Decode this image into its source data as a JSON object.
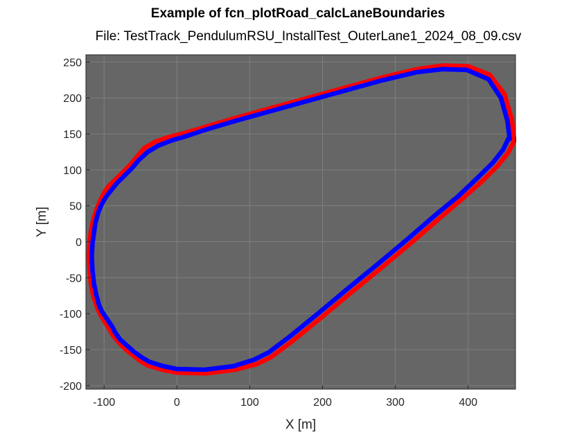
{
  "chart_data": {
    "type": "scatter",
    "title": "Example of fcn_plotRoad_calcLaneBoundaries",
    "subtitle": "File: TestTrack_PendulumRSU_InstallTest_OuterLane1_2024_08_09.csv",
    "xlabel": "X [m]",
    "ylabel": "Y [m]",
    "xlim": [
      -125,
      465
    ],
    "ylim": [
      -205,
      260
    ],
    "xticks": [
      -100,
      0,
      100,
      200,
      300,
      400
    ],
    "yticks": [
      250,
      200,
      150,
      100,
      50,
      0,
      -50,
      -100,
      -150,
      -200
    ],
    "grid": true,
    "background": "#666666",
    "series": [
      {
        "color": "#ff0000",
        "x": [
          463,
          460,
          450,
          430,
          400,
          365,
          330,
          280,
          230,
          180,
          130,
          80,
          40,
          10,
          -10,
          -30,
          -45,
          -55,
          -65,
          -75,
          -85,
          -95,
          -100,
          -105,
          -110,
          -115,
          -118,
          -120,
          -121,
          -120,
          -118,
          -115,
          -110,
          -106,
          -92,
          -88,
          -80,
          -70,
          -60,
          -50,
          -40,
          -20,
          0,
          40,
          80,
          110,
          130,
          160,
          200,
          240,
          280,
          320,
          360,
          390,
          420,
          440,
          455,
          463
        ],
        "y": [
          143,
          170,
          205,
          232,
          244,
          245,
          240,
          228,
          214,
          200,
          186,
          172,
          160,
          151,
          146,
          139,
          130,
          118,
          106,
          96,
          86,
          76,
          68,
          58,
          46,
          30,
          15,
          0,
          -20,
          -40,
          -60,
          -75,
          -90,
          -100,
          -123,
          -130,
          -140,
          -150,
          -158,
          -166,
          -172,
          -178,
          -182,
          -183,
          -178,
          -170,
          -160,
          -137,
          -104,
          -70,
          -37,
          -3,
          32,
          58,
          85,
          105,
          124,
          140
        ]
      },
      {
        "color": "#0000ff",
        "x": [
          457,
          454,
          445,
          428,
          398,
          365,
          330,
          280,
          230,
          180,
          130,
          80,
          40,
          10,
          -7,
          -25,
          -40,
          -52,
          -62,
          -72,
          -82,
          -90,
          -97,
          -103,
          -108,
          -112,
          -114,
          -116,
          -117,
          -116,
          -114,
          -111,
          -107,
          -103,
          -89,
          -85,
          -78,
          -68,
          -59,
          -48,
          -38,
          -19,
          0,
          38,
          78,
          106,
          126,
          156,
          196,
          236,
          276,
          316,
          356,
          386,
          414,
          434,
          448,
          455
        ],
        "y": [
          143,
          168,
          200,
          226,
          239,
          240,
          236,
          224,
          210,
          196,
          182,
          168,
          156,
          146,
          141,
          134,
          125,
          114,
          102,
          92,
          82,
          72,
          63,
          53,
          41,
          26,
          12,
          -2,
          -20,
          -40,
          -58,
          -73,
          -88,
          -97,
          -118,
          -126,
          -136,
          -145,
          -153,
          -161,
          -167,
          -173,
          -177,
          -178,
          -173,
          -164,
          -154,
          -131,
          -98,
          -64,
          -31,
          3,
          38,
          63,
          90,
          110,
          128,
          143
        ]
      }
    ]
  }
}
